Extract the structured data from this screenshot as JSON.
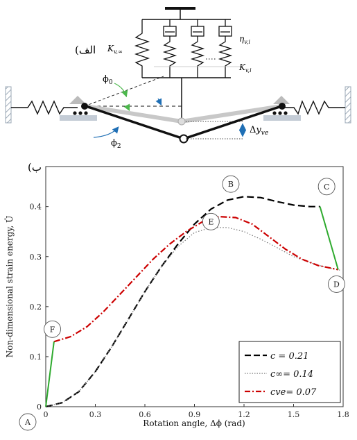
{
  "panel_a": {
    "label": "(الف",
    "k_v_inf": "K",
    "k_v_inf_sub": "v,∞",
    "eta": "η",
    "eta_sub": "v,i",
    "k_v_i": "K",
    "k_v_i_sub": "v,i",
    "phi0": "ϕ",
    "phi0_sub": "0",
    "phi2": "ϕ",
    "phi2_sub": "2",
    "delta": "Δ",
    "y_var": "y",
    "y_sub": "ve"
  },
  "panel_b": {
    "label": "(ب"
  },
  "chart_data": {
    "type": "line",
    "xlabel": "Rotation angle,  Δϕ (rad)",
    "ylabel": "Non-dimensional strain energy, Û",
    "xlim": [
      0,
      1.8
    ],
    "ylim": [
      0,
      0.48
    ],
    "xticks": [
      "0",
      "0.3",
      "0.6",
      "0.9",
      "1.2",
      "1.5",
      "1.8"
    ],
    "yticks": [
      "0",
      "0.1",
      "0.2",
      "0.3",
      "0.4"
    ],
    "grid": false,
    "legend_position": "bottom-right",
    "series": [
      {
        "name": "c = 0.21",
        "style": "dashed",
        "color": "#000000",
        "x": [
          0,
          0.1,
          0.2,
          0.3,
          0.4,
          0.5,
          0.6,
          0.7,
          0.8,
          0.9,
          1.0,
          1.1,
          1.2,
          1.3,
          1.4,
          1.5,
          1.6,
          1.66
        ],
        "y": [
          0,
          0.008,
          0.03,
          0.07,
          0.12,
          0.175,
          0.23,
          0.28,
          0.325,
          0.365,
          0.395,
          0.413,
          0.42,
          0.418,
          0.41,
          0.403,
          0.4,
          0.4
        ]
      },
      {
        "name": "c∞= 0.14",
        "style": "dotted",
        "color": "#777777",
        "x": [
          0,
          0.1,
          0.2,
          0.3,
          0.4,
          0.5,
          0.6,
          0.7,
          0.8,
          0.9,
          1.0,
          1.1,
          1.2,
          1.3,
          1.4,
          1.5,
          1.6,
          1.7,
          1.78
        ],
        "y": [
          0,
          0.008,
          0.03,
          0.07,
          0.12,
          0.175,
          0.23,
          0.28,
          0.32,
          0.348,
          0.358,
          0.358,
          0.35,
          0.335,
          0.318,
          0.3,
          0.288,
          0.278,
          0.273
        ]
      },
      {
        "name": "cve= 0.07",
        "style": "dashdot",
        "color": "#cc0000",
        "x": [
          0.05,
          0.15,
          0.25,
          0.35,
          0.45,
          0.55,
          0.65,
          0.75,
          0.85,
          0.95,
          1.05,
          1.15,
          1.25,
          1.35,
          1.45,
          1.55,
          1.65,
          1.77
        ],
        "y": [
          0.13,
          0.14,
          0.16,
          0.19,
          0.225,
          0.26,
          0.295,
          0.325,
          0.35,
          0.37,
          0.38,
          0.378,
          0.365,
          0.34,
          0.315,
          0.295,
          0.282,
          0.274
        ]
      },
      {
        "name": "",
        "style": "solid",
        "color": "#2eaa2e",
        "x": [
          0,
          0.05
        ],
        "y": [
          0,
          0.13
        ]
      },
      {
        "name": "",
        "style": "solid",
        "color": "#2eaa2e",
        "x": [
          1.66,
          1.77
        ],
        "y": [
          0.4,
          0.274
        ]
      }
    ],
    "points": [
      {
        "label": "A",
        "x": 0,
        "y": 0
      },
      {
        "label": "B",
        "x": 1.12,
        "y": 0.445
      },
      {
        "label": "C",
        "x": 1.7,
        "y": 0.44
      },
      {
        "label": "D",
        "x": 1.76,
        "y": 0.245
      },
      {
        "label": "E",
        "x": 1.0,
        "y": 0.37
      },
      {
        "label": "F",
        "x": 0.04,
        "y": 0.155
      }
    ]
  }
}
